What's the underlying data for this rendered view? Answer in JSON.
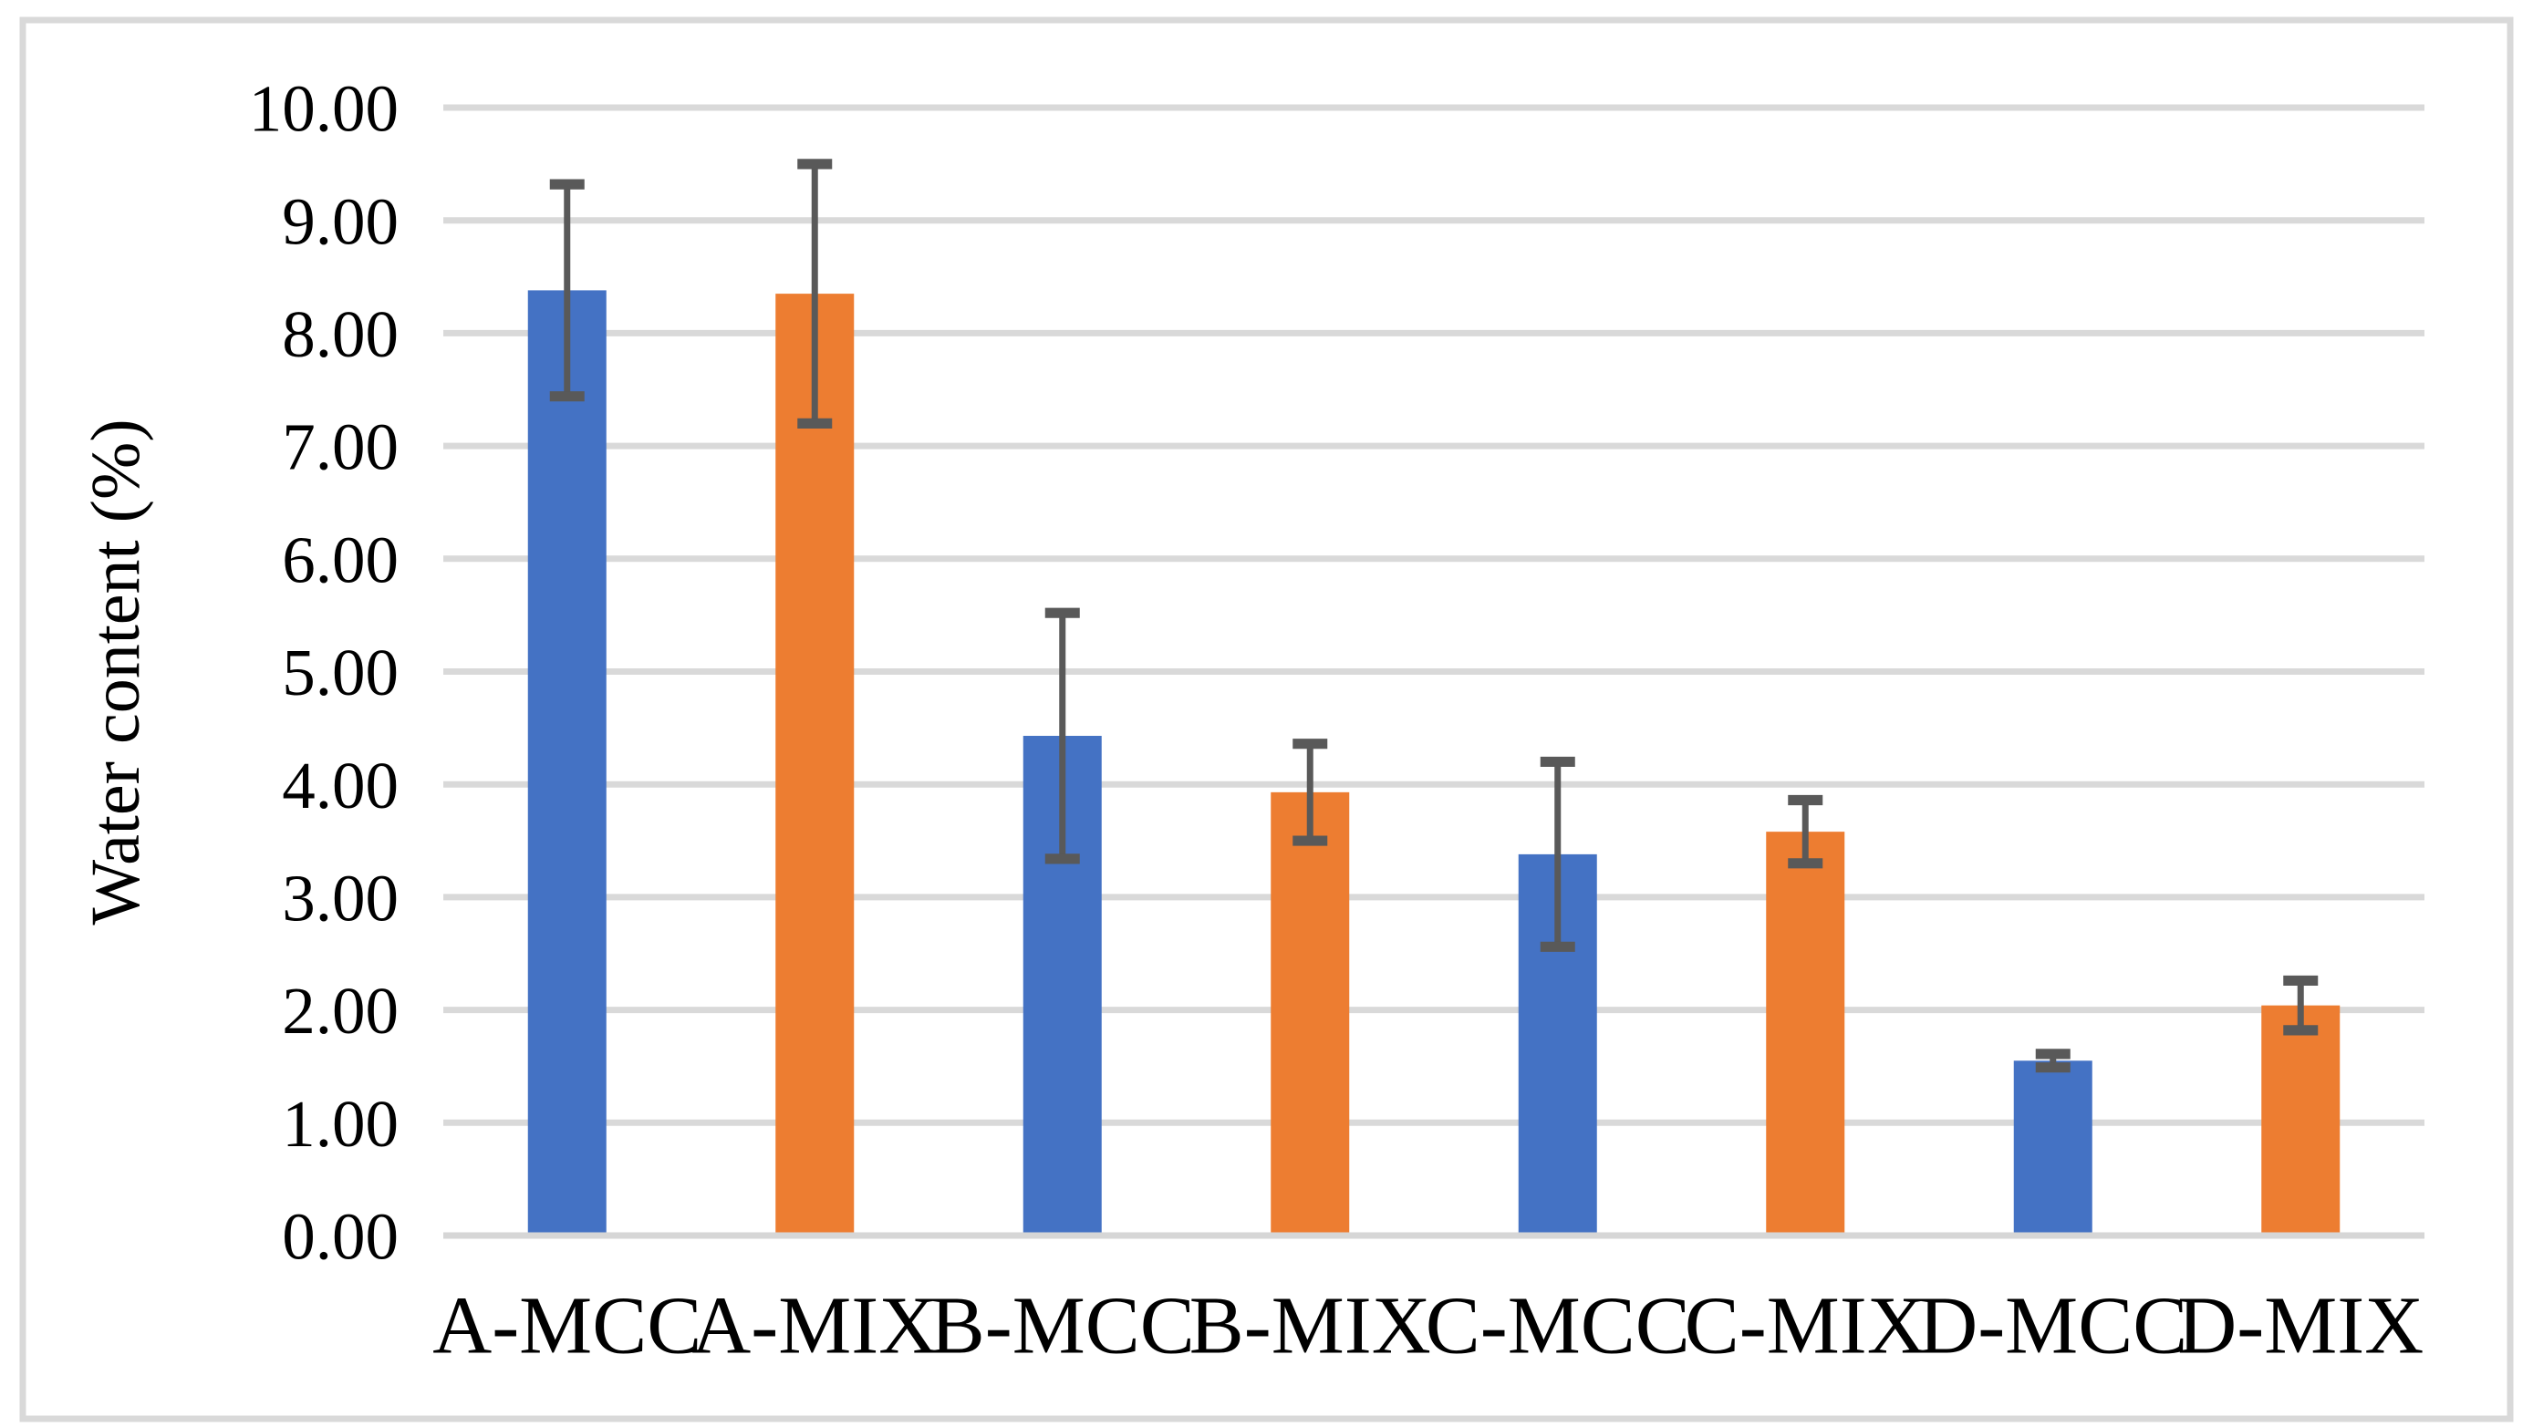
{
  "figure": {
    "background_color": "#ffffff",
    "border_color": "#d9d9d9"
  },
  "chart_data": {
    "type": "bar",
    "title": "",
    "xlabel": "",
    "ylabel": "Water content (%)",
    "categories": [
      "A-MCC",
      "A-MIX",
      "B-MCC",
      "B-MIX",
      "C-MCC",
      "C-MIX",
      "D-MCC",
      "D-MIX"
    ],
    "values": [
      8.38,
      8.35,
      4.43,
      3.93,
      3.38,
      3.58,
      1.55,
      2.04
    ],
    "errors": [
      0.94,
      1.15,
      1.09,
      0.43,
      0.82,
      0.28,
      0.06,
      0.22
    ],
    "ylim": [
      0,
      10
    ],
    "ytick_step": 1,
    "ytick_labels": [
      "0.00",
      "1.00",
      "2.00",
      "3.00",
      "4.00",
      "5.00",
      "6.00",
      "7.00",
      "8.00",
      "9.00",
      "10.00"
    ],
    "grid": true,
    "legend_position": "none",
    "series_color_pattern": [
      "#4472c4",
      "#ed7d31"
    ],
    "error_bar_color": "#595959",
    "gridline_color": "#d9d9d9",
    "axis_line_color": "#d6d6d6",
    "text_color": "#000000"
  }
}
